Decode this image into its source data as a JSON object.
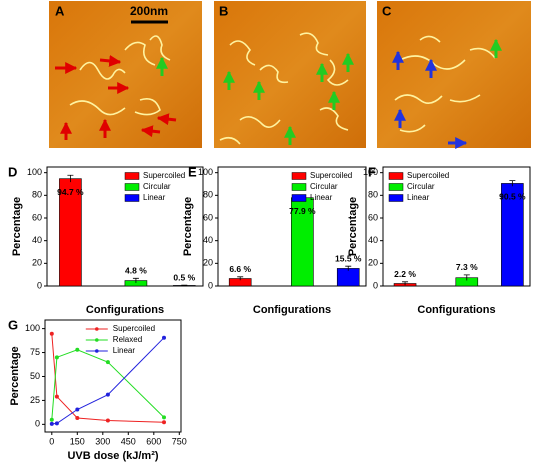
{
  "images": [
    {
      "label": "A",
      "scale_bar": "200nm"
    },
    {
      "label": "B"
    },
    {
      "label": "C"
    }
  ],
  "chart_data": [
    {
      "type": "bar",
      "panel": "D",
      "xlabel": "Configurations",
      "ylabel": "Percentage",
      "ylim": [
        0,
        105
      ],
      "yticks": [
        0,
        20,
        40,
        60,
        80,
        100
      ],
      "legend": "upper right",
      "series": [
        {
          "name": "Supercoiled",
          "color": "#ff0000",
          "values": [
            94.7
          ],
          "errors": [
            3
          ],
          "value_labels": [
            "94.7 %"
          ]
        },
        {
          "name": "Circular",
          "color": "#00ee00",
          "values": [
            4.8
          ],
          "errors": [
            2
          ],
          "value_labels": [
            "4.8 %"
          ]
        },
        {
          "name": "Linear",
          "color": "#0000ff",
          "values": [
            0.5
          ],
          "errors": [
            0.3
          ],
          "value_labels": [
            "0.5 %"
          ]
        }
      ]
    },
    {
      "type": "bar",
      "panel": "E",
      "xlabel": "Configurations",
      "ylabel": "Percentage",
      "ylim": [
        0,
        105
      ],
      "yticks": [
        0,
        20,
        40,
        60,
        80,
        100
      ],
      "legend": "upper right",
      "series": [
        {
          "name": "Supercoiled",
          "color": "#ff0000",
          "values": [
            6.6
          ],
          "errors": [
            1.5
          ],
          "value_labels": [
            "6.6 %"
          ]
        },
        {
          "name": "Circular",
          "color": "#00ee00",
          "values": [
            77.9
          ],
          "errors": [
            1
          ],
          "value_labels": [
            "77.9 %"
          ]
        },
        {
          "name": "Linear",
          "color": "#0000ff",
          "values": [
            15.5
          ],
          "errors": [
            2
          ],
          "value_labels": [
            "15.5 %"
          ]
        }
      ]
    },
    {
      "type": "bar",
      "panel": "F",
      "xlabel": "Configurations",
      "ylabel": "Percentage",
      "ylim": [
        0,
        105
      ],
      "yticks": [
        0,
        20,
        40,
        60,
        80,
        100
      ],
      "legend": "upper left",
      "series": [
        {
          "name": "Supercoiled",
          "color": "#ff0000",
          "values": [
            2.2
          ],
          "errors": [
            1.5
          ],
          "value_labels": [
            "2.2 %"
          ]
        },
        {
          "name": "Circular",
          "color": "#00ee00",
          "values": [
            7.3
          ],
          "errors": [
            2.5
          ],
          "value_labels": [
            "7.3 %"
          ]
        },
        {
          "name": "Linear",
          "color": "#0000ff",
          "values": [
            90.5
          ],
          "errors": [
            2.5
          ],
          "value_labels": [
            "90.5 %"
          ]
        }
      ]
    },
    {
      "type": "line",
      "panel": "G",
      "xlabel": "UVB dose (kJ/m²)",
      "ylabel": "Percentage",
      "xlim": [
        -40,
        760
      ],
      "xticks": [
        0,
        150,
        300,
        450,
        600,
        750
      ],
      "ylim": [
        -8,
        109
      ],
      "yticks": [
        0,
        25,
        50,
        75,
        100
      ],
      "legend": "upper center",
      "x": [
        0,
        30,
        150,
        330,
        660
      ],
      "series": [
        {
          "name": "Supercoiled",
          "color": "#ee2222",
          "values": [
            94.7,
            29,
            6.6,
            4,
            2.2
          ]
        },
        {
          "name": "Relaxed",
          "color": "#22dd22",
          "values": [
            4.8,
            70,
            77.9,
            65,
            7.3
          ]
        },
        {
          "name": "Linear",
          "color": "#2222dd",
          "values": [
            0.5,
            1,
            15.5,
            31,
            90.5
          ]
        }
      ]
    }
  ]
}
